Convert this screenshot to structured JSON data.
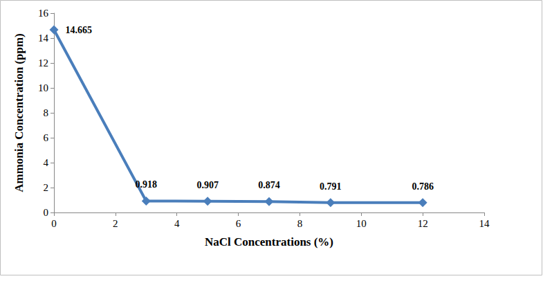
{
  "chart_data": {
    "type": "line",
    "x_label": "NaCl Concentrations (%)",
    "y_label": "Ammonia Concentration (ppm)",
    "x": [
      0,
      3,
      5,
      7,
      9,
      12
    ],
    "values": [
      14.665,
      0.918,
      0.907,
      0.874,
      0.791,
      0.786
    ],
    "color": "#4a7ebb",
    "marker": "diamond",
    "xlim": [
      0,
      14
    ],
    "xticks": [
      0,
      2,
      4,
      6,
      8,
      10,
      12,
      14
    ],
    "ylim": [
      0,
      16
    ],
    "yticks": [
      0,
      2,
      4,
      6,
      8,
      10,
      12,
      14,
      16
    ],
    "grid": false,
    "data_labels": true
  }
}
